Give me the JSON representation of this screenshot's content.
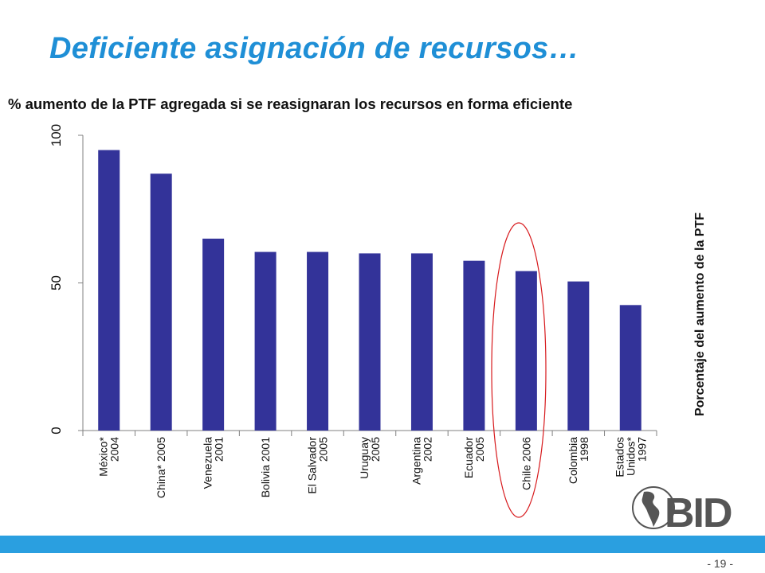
{
  "slide": {
    "title": "Deficiente asignación de recursos…",
    "page_number": "- 19 -"
  },
  "logo": {
    "text": "BID"
  },
  "colors": {
    "title": "#1f8fd6",
    "bar": "#333399",
    "highlight": "#d7191c",
    "footer": "#2a9fe0"
  },
  "chart_data": {
    "type": "bar",
    "title": "% aumento de la PTF agregada si se reasignaran los recursos en forma  eficiente",
    "ylabel": "Porcentaje del aumento de la PTF",
    "ylim": [
      0,
      100
    ],
    "yticks": [
      "0",
      "50",
      "100"
    ],
    "categories": [
      [
        "México*",
        "2004"
      ],
      [
        "China* 2005"
      ],
      [
        "Venezuela",
        "2001"
      ],
      [
        "Bolivia 2001"
      ],
      [
        "El Salvador",
        "2005"
      ],
      [
        "Uruguay",
        "2005"
      ],
      [
        "Argentina",
        "2002"
      ],
      [
        "Ecuador",
        "2005"
      ],
      [
        "Chile 2006"
      ],
      [
        "Colombia",
        "1998"
      ],
      [
        "Estados",
        "Unidos*",
        "1997"
      ]
    ],
    "values": [
      95,
      87,
      65,
      60.5,
      60.5,
      60,
      60,
      57.5,
      54,
      50.5,
      42.5
    ],
    "highlighted_category": "Chile 2006",
    "grid": false
  }
}
